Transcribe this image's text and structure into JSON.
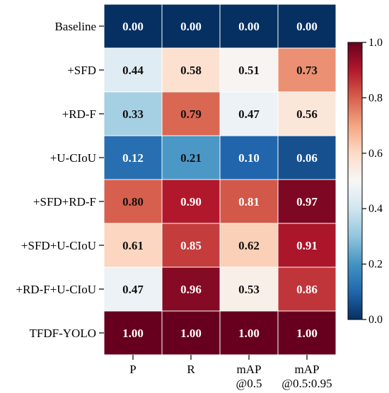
{
  "chart_data": {
    "type": "heatmap",
    "rows": [
      "Baseline",
      "+SFD",
      "+RD-F",
      "+U-CIoU",
      "+SFD+RD-F",
      "+SFD+U-CIoU",
      "+RD-F+U-CIoU",
      "TFDF-YOLO"
    ],
    "columns": [
      [
        "P"
      ],
      [
        "R"
      ],
      [
        "mAP",
        "@0.5"
      ],
      [
        "mAP",
        "@0.5:0.95"
      ]
    ],
    "values": [
      [
        0.0,
        0.0,
        0.0,
        0.0
      ],
      [
        0.44,
        0.58,
        0.51,
        0.73
      ],
      [
        0.33,
        0.79,
        0.47,
        0.56
      ],
      [
        0.12,
        0.21,
        0.1,
        0.06
      ],
      [
        0.8,
        0.9,
        0.81,
        0.97
      ],
      [
        0.61,
        0.85,
        0.62,
        0.91
      ],
      [
        0.47,
        0.96,
        0.53,
        0.86
      ],
      [
        1.0,
        1.0,
        1.0,
        1.0
      ]
    ],
    "value_format": "0.00",
    "colormap": "RdBu_r",
    "vmin": 0.0,
    "vmax": 1.0,
    "colorbar_ticks": [
      "0.0",
      "0.2",
      "0.4",
      "0.6",
      "0.8",
      "1.0"
    ],
    "title": "",
    "xlabel": "",
    "ylabel": ""
  }
}
